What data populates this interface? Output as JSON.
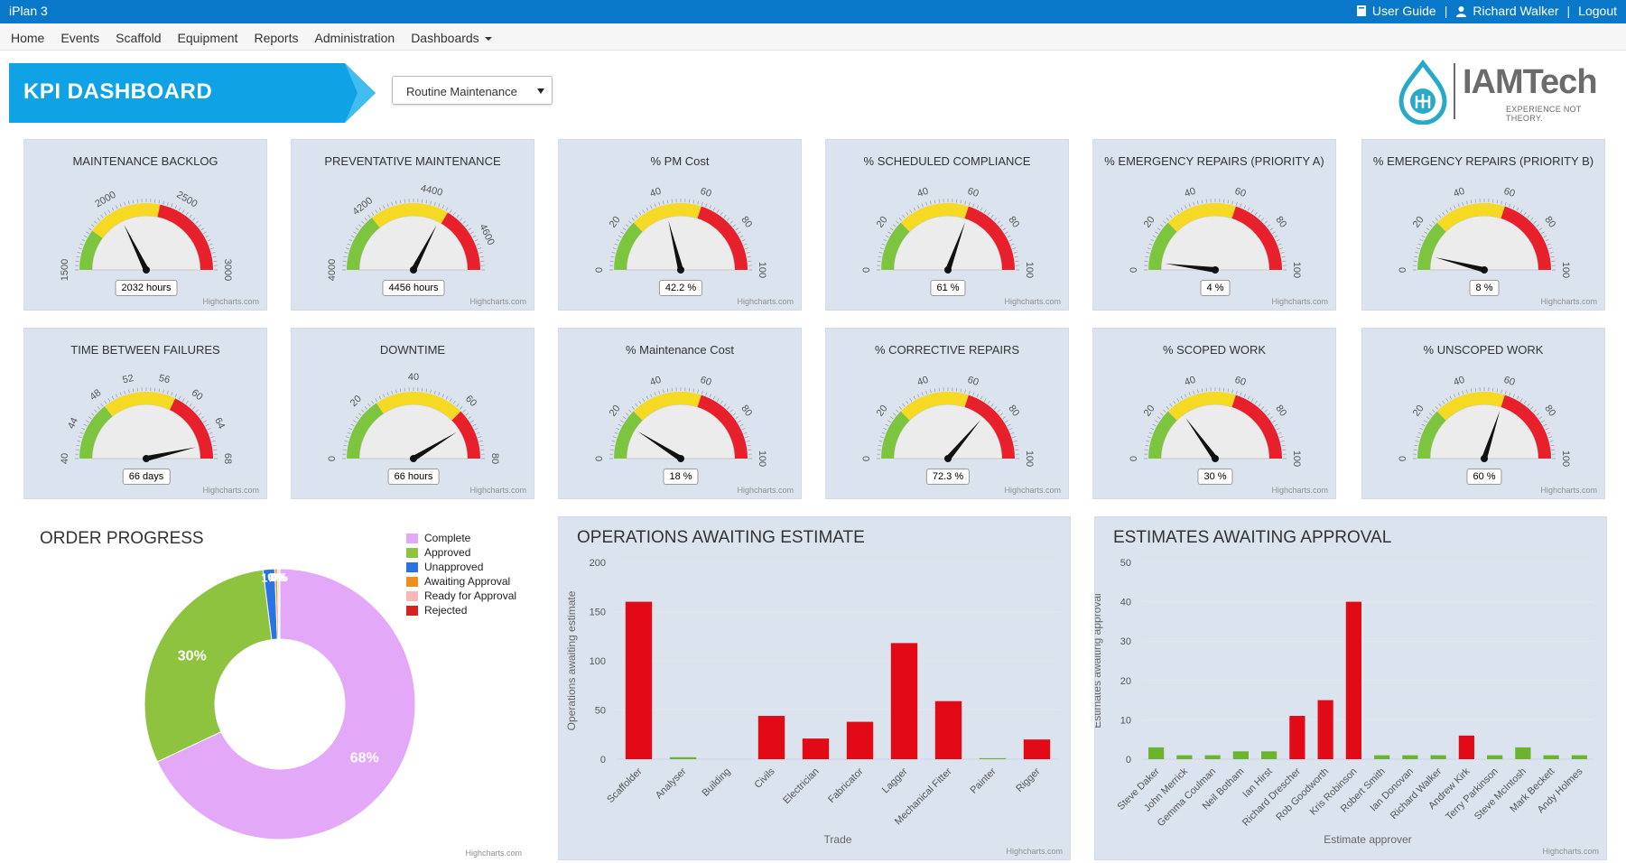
{
  "topbar": {
    "app_title": "iPlan 3",
    "user_guide": "User Guide",
    "user_name": "Richard Walker",
    "logout": "Logout",
    "separator": "|"
  },
  "nav": {
    "items": [
      "Home",
      "Events",
      "Scaffold",
      "Equipment",
      "Reports",
      "Administration",
      "Dashboards"
    ]
  },
  "banner": {
    "title": "KPI DASHBOARD"
  },
  "dashboard_select": {
    "selected": "Routine Maintenance"
  },
  "logo": {
    "brand": "IAMTech",
    "tagline": "EXPERIENCE NOT THEORY."
  },
  "credit": "Highcharts.com",
  "colors": {
    "green": "#7dc53f",
    "yellow": "#f5d922",
    "red": "#e8202b",
    "bar_red": "#e20a17",
    "bar_green": "#6cb32e",
    "donut_purple": "#e3a8f7",
    "donut_green": "#8dc33e",
    "donut_blue": "#2a73e3",
    "donut_orange": "#f28f1c",
    "donut_pink": "#f7b7b7",
    "donut_red": "#d92121"
  },
  "gauges": [
    {
      "title": "MAINTENANCE BACKLOG",
      "min": 1500,
      "max": 3000,
      "ticks": [
        "1500",
        "2000",
        "2500",
        "3000"
      ],
      "tick_values": [
        1500,
        2000,
        2500,
        3000
      ],
      "value": 2032,
      "label": "2032 hours",
      "bands": [
        [
          1500,
          1800
        ],
        [
          1800,
          2350
        ],
        [
          2350,
          3000
        ]
      ]
    },
    {
      "title": "PREVENTATIVE MAINTENANCE",
      "min": 4000,
      "max": 4700,
      "ticks": [
        "4000",
        "4200",
        "4400",
        "4600"
      ],
      "tick_values": [
        4000,
        4200,
        4400,
        4600
      ],
      "value": 4456,
      "label": "4456 hours",
      "bands": [
        [
          4000,
          4200
        ],
        [
          4200,
          4470
        ],
        [
          4470,
          4700
        ]
      ]
    },
    {
      "title": "% PM Cost",
      "min": 0,
      "max": 100,
      "ticks": [
        "0",
        "20",
        "40",
        "60",
        "80",
        "100"
      ],
      "tick_values": [
        0,
        20,
        40,
        60,
        80,
        100
      ],
      "value": 42.2,
      "label": "42.2 %",
      "bands": [
        [
          0,
          25
        ],
        [
          25,
          60
        ],
        [
          60,
          100
        ]
      ]
    },
    {
      "title": "% SCHEDULED COMPLIANCE",
      "min": 0,
      "max": 100,
      "ticks": [
        "0",
        "20",
        "40",
        "60",
        "80",
        "100"
      ],
      "tick_values": [
        0,
        20,
        40,
        60,
        80,
        100
      ],
      "value": 61,
      "label": "61 %",
      "bands": [
        [
          0,
          25
        ],
        [
          25,
          60
        ],
        [
          60,
          100
        ]
      ]
    },
    {
      "title": "% EMERGENCY REPAIRS (PRIORITY A)",
      "min": 0,
      "max": 100,
      "ticks": [
        "0",
        "20",
        "40",
        "60",
        "80",
        "100"
      ],
      "tick_values": [
        0,
        20,
        40,
        60,
        80,
        100
      ],
      "value": 4,
      "label": "4 %",
      "bands": [
        [
          0,
          25
        ],
        [
          25,
          60
        ],
        [
          60,
          100
        ]
      ]
    },
    {
      "title": "% EMERGENCY REPAIRS (PRIORITY B)",
      "min": 0,
      "max": 100,
      "ticks": [
        "0",
        "20",
        "40",
        "60",
        "80",
        "100"
      ],
      "tick_values": [
        0,
        20,
        40,
        60,
        80,
        100
      ],
      "value": 8,
      "label": "8 %",
      "bands": [
        [
          0,
          25
        ],
        [
          25,
          60
        ],
        [
          60,
          100
        ]
      ]
    },
    {
      "title": "TIME BETWEEN FAILURES",
      "min": 40,
      "max": 68,
      "ticks": [
        "40",
        "44",
        "48",
        "52",
        "56",
        "60",
        "64",
        "68"
      ],
      "tick_values": [
        40,
        44,
        48,
        52,
        56,
        60,
        64,
        68
      ],
      "value": 66,
      "label": "66 days",
      "bands": [
        [
          40,
          48
        ],
        [
          48,
          58
        ],
        [
          58,
          68
        ]
      ]
    },
    {
      "title": "DOWNTIME",
      "min": 0,
      "max": 80,
      "ticks": [
        "0",
        "20",
        "40",
        "60",
        "80"
      ],
      "tick_values": [
        0,
        20,
        40,
        60,
        80
      ],
      "value": 66,
      "label": "66 hours",
      "bands": [
        [
          0,
          25
        ],
        [
          25,
          60
        ],
        [
          60,
          80
        ]
      ]
    },
    {
      "title": "% Maintenance Cost",
      "min": 0,
      "max": 100,
      "ticks": [
        "0",
        "20",
        "40",
        "60",
        "80",
        "100"
      ],
      "tick_values": [
        0,
        20,
        40,
        60,
        80,
        100
      ],
      "value": 18,
      "label": "18 %",
      "bands": [
        [
          0,
          25
        ],
        [
          25,
          60
        ],
        [
          60,
          100
        ]
      ]
    },
    {
      "title": "% CORRECTIVE REPAIRS",
      "min": 0,
      "max": 100,
      "ticks": [
        "0",
        "20",
        "40",
        "60",
        "80",
        "100"
      ],
      "tick_values": [
        0,
        20,
        40,
        60,
        80,
        100
      ],
      "value": 72.3,
      "label": "72.3 %",
      "bands": [
        [
          0,
          25
        ],
        [
          25,
          60
        ],
        [
          60,
          100
        ]
      ]
    },
    {
      "title": "% SCOPED WORK",
      "min": 0,
      "max": 100,
      "ticks": [
        "0",
        "20",
        "40",
        "60",
        "80",
        "100"
      ],
      "tick_values": [
        0,
        20,
        40,
        60,
        80,
        100
      ],
      "value": 30,
      "label": "30 %",
      "bands": [
        [
          0,
          25
        ],
        [
          25,
          60
        ],
        [
          60,
          100
        ]
      ]
    },
    {
      "title": "% UNSCOPED WORK",
      "min": 0,
      "max": 100,
      "ticks": [
        "0",
        "20",
        "40",
        "60",
        "80",
        "100"
      ],
      "tick_values": [
        0,
        20,
        40,
        60,
        80,
        100
      ],
      "value": 60,
      "label": "60 %",
      "bands": [
        [
          0,
          25
        ],
        [
          25,
          60
        ],
        [
          60,
          100
        ]
      ]
    }
  ],
  "chart_data": [
    {
      "type": "pie",
      "title": "ORDER PROGRESS",
      "donut": true,
      "legend_position": "top-right",
      "series": [
        {
          "name": "Complete",
          "value": 68,
          "label": "68%"
        },
        {
          "name": "Approved",
          "value": 30,
          "label": "30%"
        },
        {
          "name": "Unapproved",
          "value": 1.4,
          "label": "1%"
        },
        {
          "name": "Awaiting Approval",
          "value": 0.3,
          "label": "0%"
        },
        {
          "name": "Ready for Approval",
          "value": 0.2,
          "label": "0%"
        },
        {
          "name": "Rejected",
          "value": 0.1,
          "label": "0%"
        }
      ]
    },
    {
      "type": "bar",
      "title": "OPERATIONS AWAITING ESTIMATE",
      "xlabel": "Trade",
      "ylabel": "Operations awaiting estimate",
      "ylim": [
        0,
        200
      ],
      "yticks": [
        0,
        50,
        100,
        150,
        200
      ],
      "categories": [
        "Scaffolder",
        "Analyser",
        "Building",
        "Civils",
        "Electrician",
        "Fabricator",
        "Lagger",
        "Mechanical Fitter",
        "Painter",
        "Rigger"
      ],
      "values": [
        160,
        2,
        0,
        44,
        21,
        38,
        118,
        59,
        1,
        20
      ]
    },
    {
      "type": "bar",
      "title": "ESTIMATES AWAITING APPROVAL",
      "xlabel": "Estimate approver",
      "ylabel": "Estimates awaiting approval",
      "ylim": [
        0,
        50
      ],
      "yticks": [
        0,
        10,
        20,
        30,
        40,
        50
      ],
      "categories": [
        "Steve Daker",
        "John Merrick",
        "Gemma Coulman",
        "Neil Botham",
        "Ian Hirst",
        "Richard Drescher",
        "Rob Goodworth",
        "Kris Robinson",
        "Robert Smith",
        "Ian Donovan",
        "Richard Walker",
        "Andrew Kirk",
        "Terry Parkinson",
        "Steve McIntosh",
        "Mark Beckett",
        "Andy Holmes"
      ],
      "values": [
        3,
        1,
        1,
        2,
        2,
        11,
        15,
        40,
        1,
        1,
        1,
        6,
        1,
        3,
        1,
        1
      ]
    }
  ]
}
